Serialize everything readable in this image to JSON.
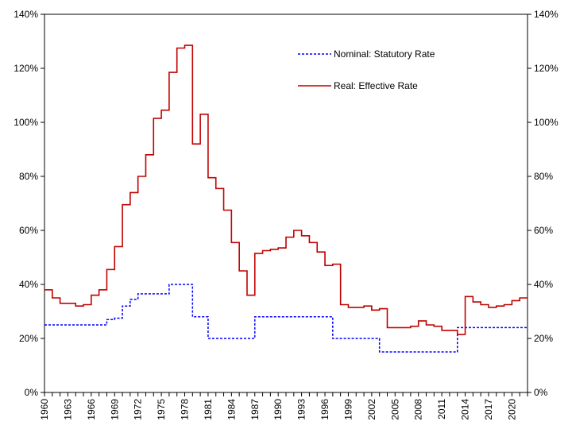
{
  "chart_data": {
    "type": "line",
    "step": true,
    "title": "",
    "xlabel": "",
    "ylabel": "",
    "xlim": [
      1960,
      2022
    ],
    "ylim": [
      0,
      140
    ],
    "y_tick_values": [
      0,
      20,
      40,
      60,
      80,
      100,
      120,
      140
    ],
    "y_tick_labels": [
      "0%",
      "20%",
      "40%",
      "60%",
      "80%",
      "100%",
      "120%",
      "140%"
    ],
    "x_tick_values": [
      1960,
      1963,
      1966,
      1969,
      1972,
      1975,
      1978,
      1981,
      1984,
      1987,
      1990,
      1993,
      1996,
      1999,
      2002,
      2005,
      2008,
      2011,
      2014,
      2017,
      2020
    ],
    "x_tick_labels": [
      "1960",
      "1963",
      "1966",
      "1969",
      "1972",
      "1975",
      "1978",
      "1981",
      "1984",
      "1987",
      "1990",
      "1993",
      "1996",
      "1999",
      "2002",
      "2005",
      "2008",
      "2011",
      "2014",
      "2017",
      "2020"
    ],
    "grid": false,
    "secondary_y_axis": true,
    "legend_position": "top-center",
    "series": [
      {
        "name": "Nominal: Statutory Rate",
        "color": "#0000FF",
        "dash": "dashed",
        "x": [
          1960,
          1961,
          1962,
          1963,
          1964,
          1965,
          1966,
          1967,
          1968,
          1969,
          1970,
          1971,
          1972,
          1973,
          1974,
          1975,
          1976,
          1977,
          1978,
          1979,
          1980,
          1981,
          1982,
          1983,
          1984,
          1985,
          1986,
          1987,
          1988,
          1989,
          1990,
          1991,
          1992,
          1993,
          1994,
          1995,
          1996,
          1997,
          1998,
          1999,
          2000,
          2001,
          2002,
          2003,
          2004,
          2005,
          2006,
          2007,
          2008,
          2009,
          2010,
          2011,
          2012,
          2013,
          2014,
          2015,
          2016,
          2017,
          2018,
          2019,
          2020,
          2021,
          2022
        ],
        "values": [
          25,
          25,
          25,
          25,
          25,
          25,
          25,
          25,
          27,
          27.5,
          32,
          34.5,
          36.5,
          36.5,
          36.5,
          36.5,
          40,
          40,
          40,
          28,
          28,
          20,
          20,
          20,
          20,
          20,
          20,
          28,
          28,
          28,
          28,
          28,
          28,
          28,
          28,
          28,
          28,
          20,
          20,
          20,
          20,
          20,
          20,
          15,
          15,
          15,
          15,
          15,
          15,
          15,
          15,
          15,
          15,
          24,
          24,
          24,
          24,
          24,
          24,
          24,
          24,
          24,
          24
        ]
      },
      {
        "name": "Real: Effective Rate",
        "color": "#C00000",
        "dash": "solid",
        "x": [
          1960,
          1961,
          1962,
          1963,
          1964,
          1965,
          1966,
          1967,
          1968,
          1969,
          1970,
          1971,
          1972,
          1973,
          1974,
          1975,
          1976,
          1977,
          1978,
          1979,
          1980,
          1981,
          1982,
          1983,
          1984,
          1985,
          1986,
          1987,
          1988,
          1989,
          1990,
          1991,
          1992,
          1993,
          1994,
          1995,
          1996,
          1997,
          1998,
          1999,
          2000,
          2001,
          2002,
          2003,
          2004,
          2005,
          2006,
          2007,
          2008,
          2009,
          2010,
          2011,
          2012,
          2013,
          2014,
          2015,
          2016,
          2017,
          2018,
          2019,
          2020,
          2021,
          2022
        ],
        "values": [
          38,
          35,
          33,
          33,
          32,
          32.5,
          36,
          38,
          45.5,
          54,
          69.5,
          74,
          80,
          88,
          101.5,
          104.5,
          118.5,
          127.5,
          128.5,
          92,
          103,
          79.5,
          75.5,
          67.5,
          55.5,
          45,
          36,
          51.5,
          52.5,
          53,
          53.5,
          57.5,
          60,
          58,
          55.5,
          52,
          47,
          47.5,
          32.5,
          31.5,
          31.5,
          32,
          30.5,
          31,
          24,
          24,
          24,
          24.5,
          26.5,
          25,
          24.5,
          23,
          23,
          21.5,
          35.5,
          33.5,
          32.5,
          31.5,
          32,
          32.5,
          34,
          35,
          35
        ]
      }
    ]
  }
}
